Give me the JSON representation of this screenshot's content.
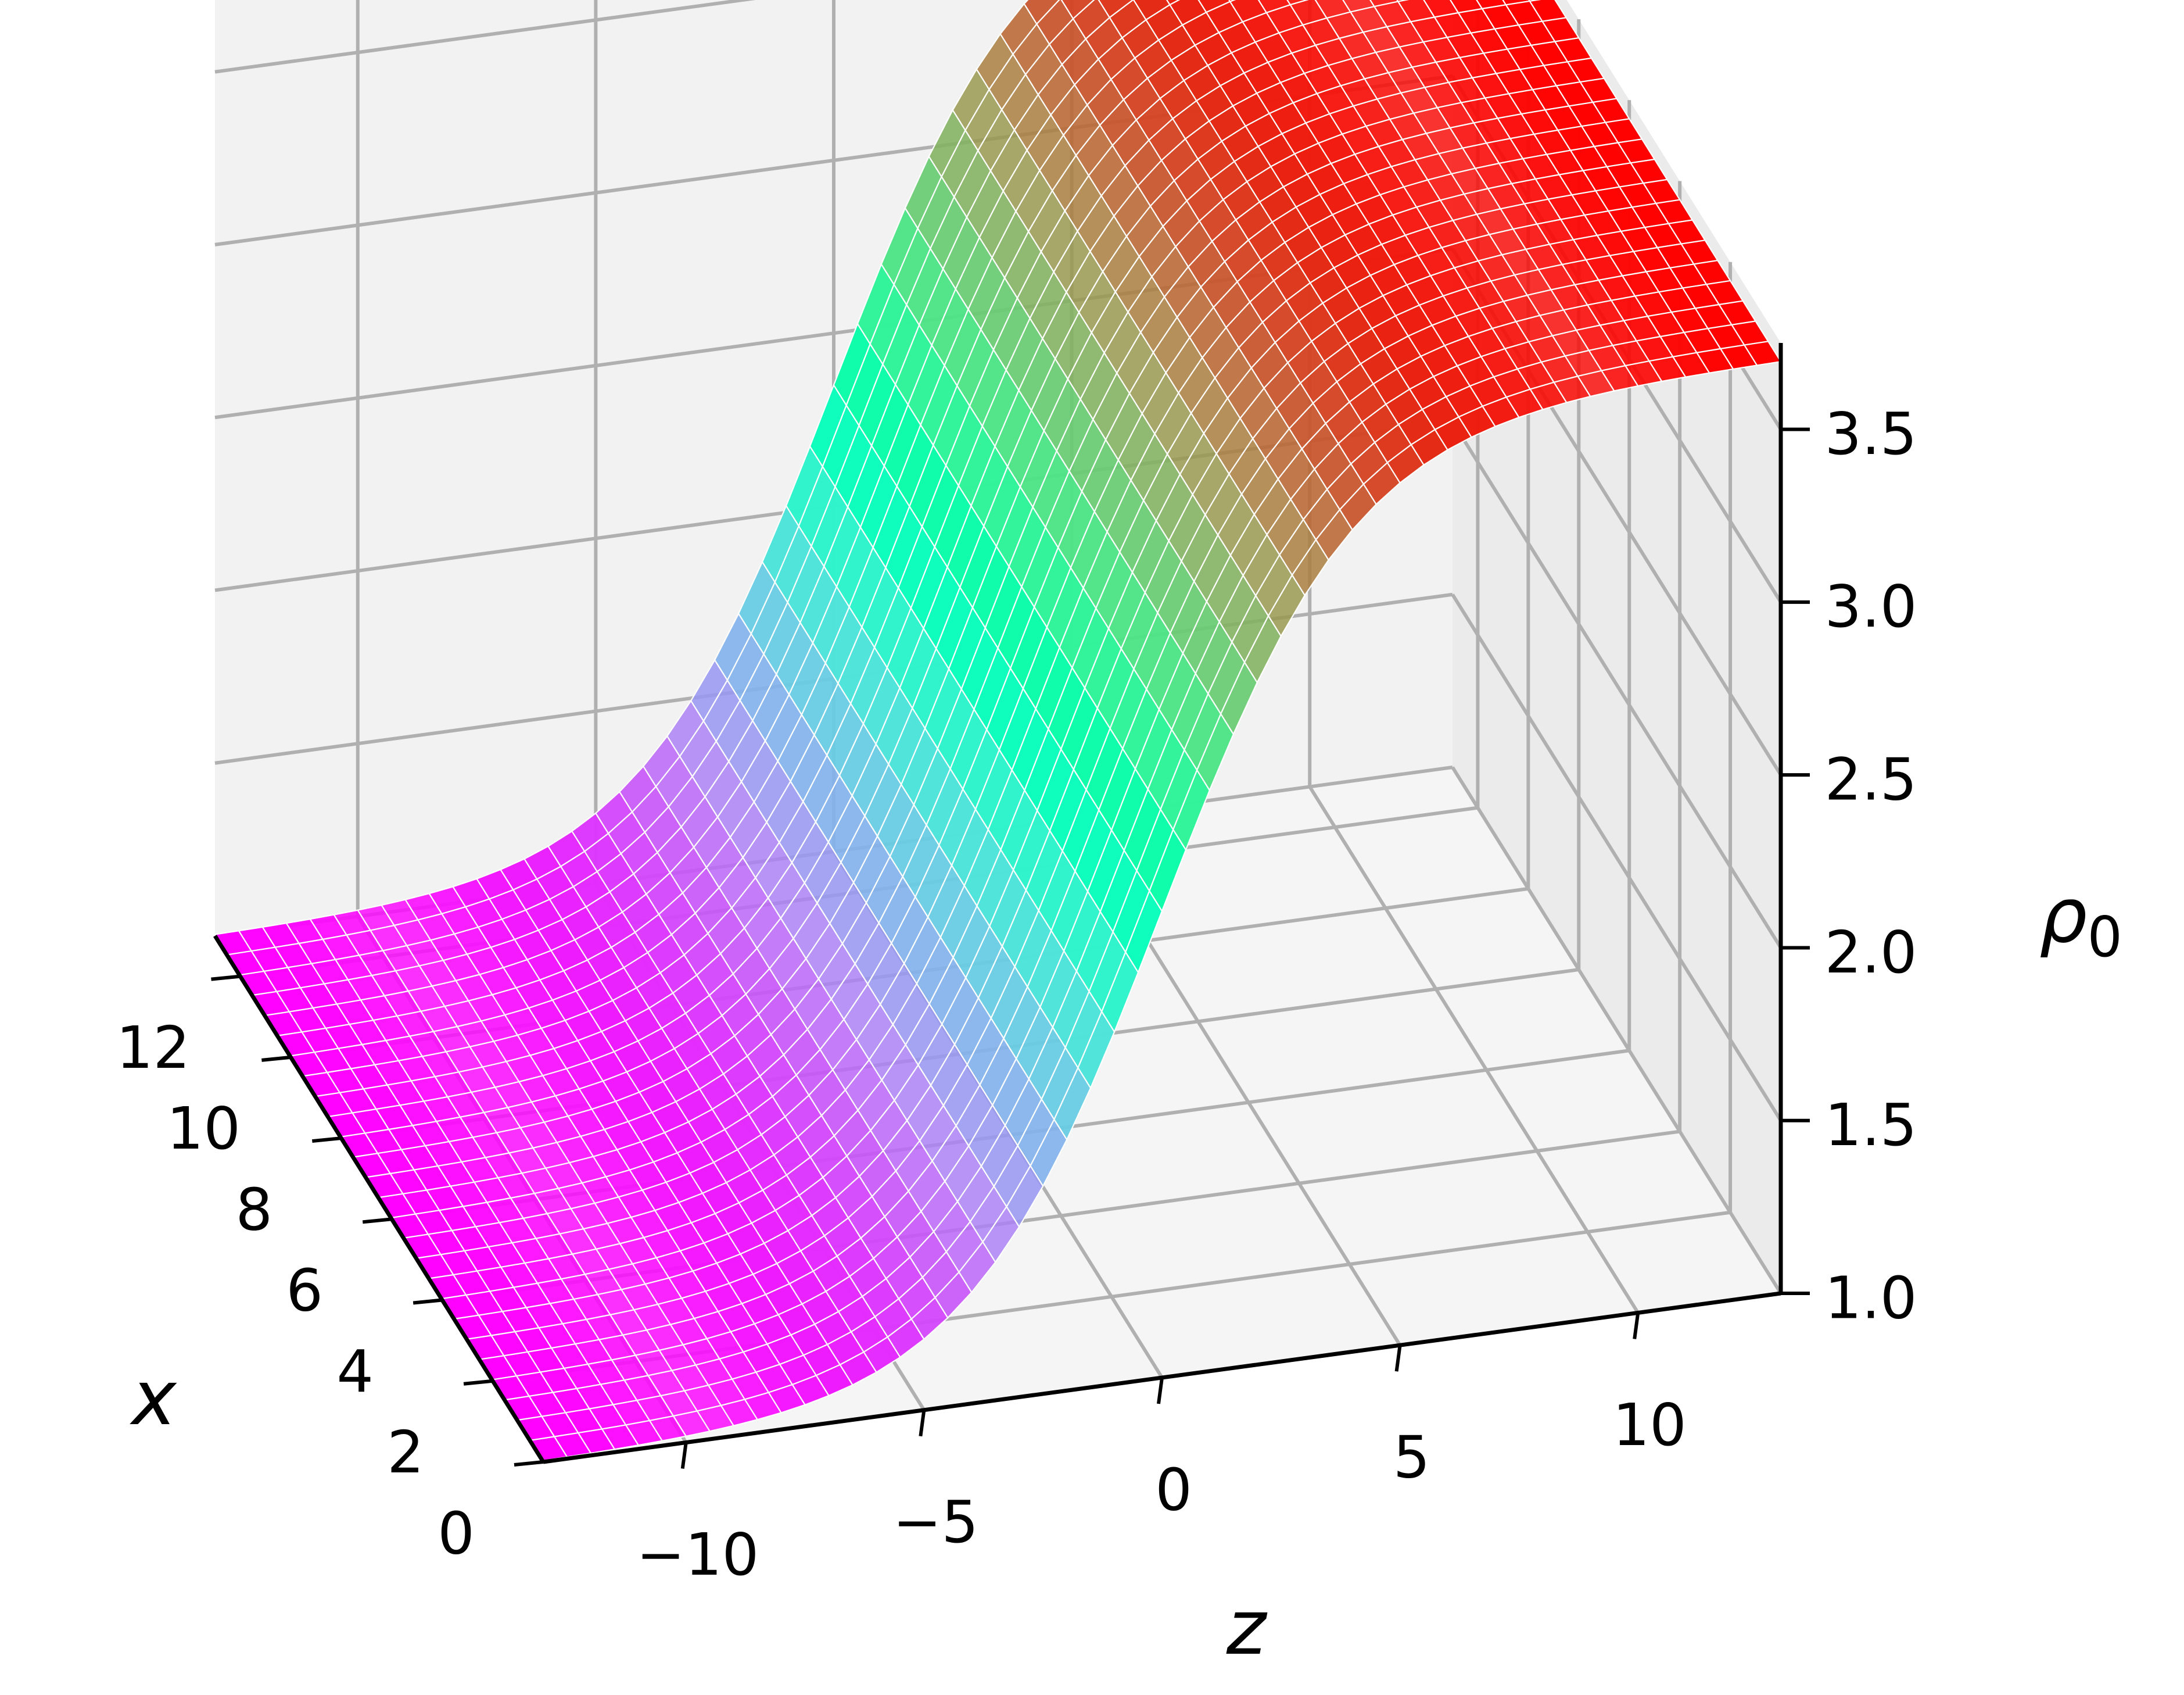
{
  "chart_data": {
    "type": "surface",
    "title": "",
    "xlabel": "x",
    "zlabel": "z",
    "ylabel": "ρ0",
    "xlabel_main": "ρ",
    "xlabel_sub": "0",
    "colormap": "rainbow",
    "x_ticks": [
      "0",
      "2",
      "4",
      "6",
      "8",
      "10",
      "12"
    ],
    "z_ticks": [
      "−10",
      "−5",
      "0",
      "5",
      "10"
    ],
    "rho_ticks": [
      "1.0",
      "1.5",
      "2.0",
      "2.5",
      "3.0",
      "3.5"
    ],
    "x_range": [
      0,
      13
    ],
    "z_range": [
      -13,
      13
    ],
    "rho_range": [
      1.0,
      3.75
    ],
    "surface": {
      "formula": "rho0 = 2.35 + 1.35 * tanh(z / 4)",
      "x_samples": [
        0,
        13
      ],
      "z_samples": [
        -13,
        13
      ],
      "rho_low": 1.0,
      "rho_high": 3.7
    },
    "grid": true,
    "pane_color": "#f2f2f2",
    "gridline_color": "#b0b0b0",
    "mesh_color": "#ffffff"
  }
}
